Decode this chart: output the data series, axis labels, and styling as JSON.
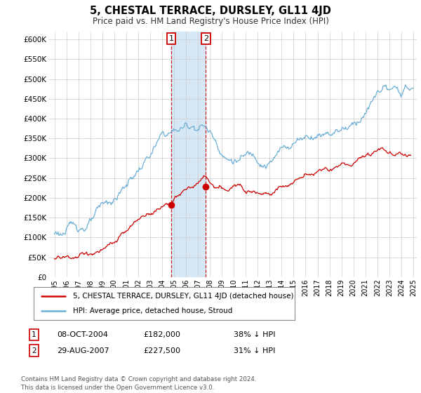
{
  "title": "5, CHESTAL TERRACE, DURSLEY, GL11 4JD",
  "subtitle": "Price paid vs. HM Land Registry's House Price Index (HPI)",
  "ylim": [
    0,
    620000
  ],
  "xlim_start": 1994.5,
  "xlim_end": 2025.3,
  "hpi_color": "#6baed6",
  "price_color": "#cc0000",
  "shade_color": "#d6e8f5",
  "sale1_date": 2004.77,
  "sale1_price": 182000,
  "sale1_label": "1",
  "sale2_date": 2007.66,
  "sale2_price": 227500,
  "sale2_label": "2",
  "legend_line1": "5, CHESTAL TERRACE, DURSLEY, GL11 4JD (detached house)",
  "legend_line2": "HPI: Average price, detached house, Stroud",
  "footer": "Contains HM Land Registry data © Crown copyright and database right 2024.\nThis data is licensed under the Open Government Licence v3.0.",
  "background_color": "#ffffff",
  "grid_color": "#cccccc",
  "row1_num": "1",
  "row1_date": "08-OCT-2004",
  "row1_price": "£182,000",
  "row1_hpi": "38% ↓ HPI",
  "row2_num": "2",
  "row2_date": "29-AUG-2007",
  "row2_price": "£227,500",
  "row2_hpi": "31% ↓ HPI"
}
